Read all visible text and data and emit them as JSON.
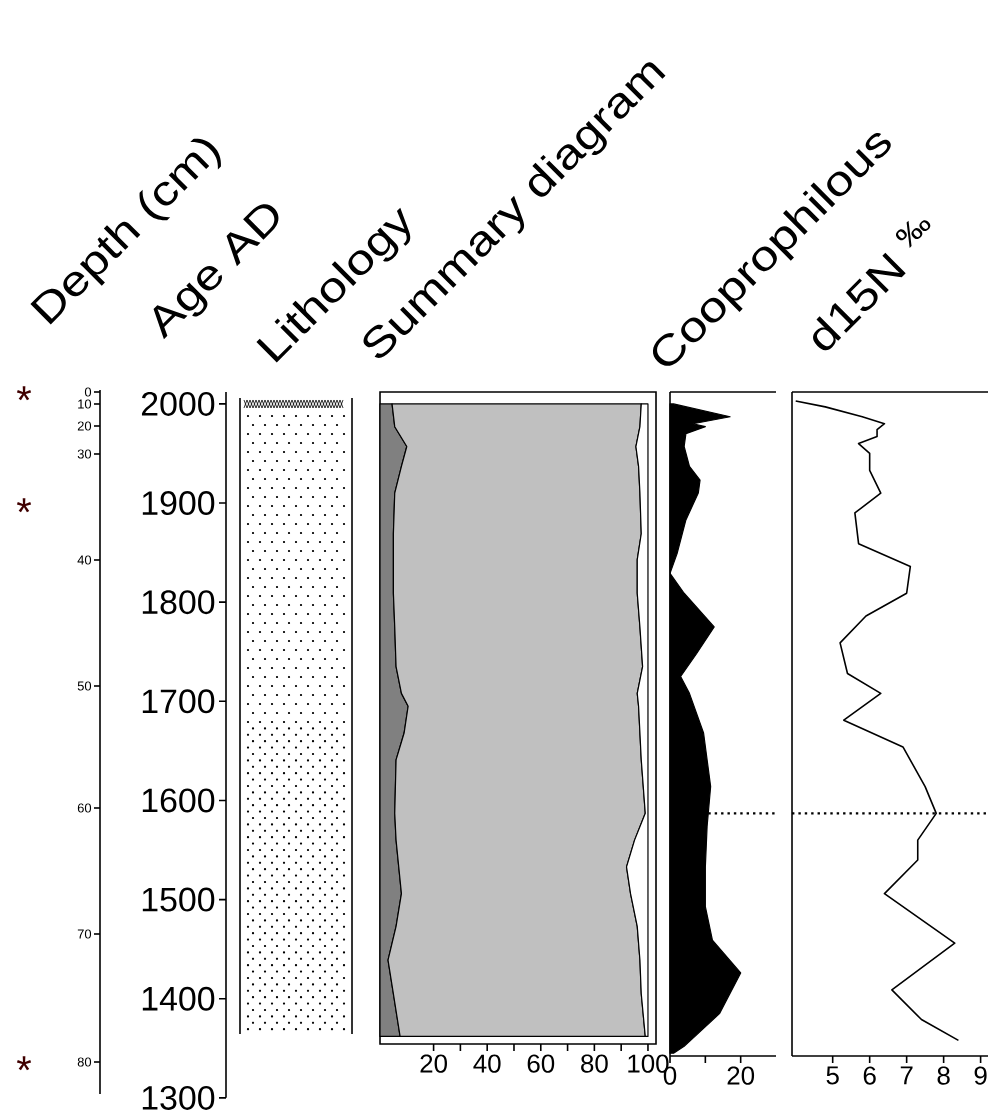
{
  "chart_data": [
    {
      "type": "area",
      "title": "Summary diagram",
      "ylabel": "Age AD",
      "orientation": "horizontal",
      "stacked": true,
      "x": [
        2000,
        1977,
        1957,
        1937,
        1910,
        1869,
        1843,
        1809,
        1775,
        1735,
        1708,
        1695,
        1668,
        1641,
        1587,
        1560,
        1533,
        1506,
        1473,
        1439,
        1405,
        1362
      ],
      "series": [
        {
          "color": "#808080",
          "values": [
            4.5,
            5.5,
            10,
            8,
            5.5,
            5,
            5,
            5,
            5.5,
            6,
            8,
            10.5,
            9,
            6,
            5.5,
            6,
            7,
            8,
            6,
            3,
            5,
            7.5
          ]
        },
        {
          "color": "#c0c0c0",
          "values": [
            93,
            91.5,
            85.5,
            88.5,
            91.5,
            92.5,
            91,
            91,
            91.5,
            92,
            88,
            86,
            88,
            91.5,
            93.5,
            89,
            85,
            85.5,
            90,
            94,
            92.5,
            91.5
          ]
        },
        {
          "color": "#ffffff",
          "values": [
            2.5,
            3,
            4.5,
            3.5,
            3,
            2.5,
            4,
            4,
            3,
            2,
            4,
            3.5,
            3,
            2.5,
            1,
            5,
            8,
            6.5,
            4,
            3,
            2.5,
            1
          ]
        }
      ],
      "xlim": [
        0,
        103
      ],
      "xticks": [
        20,
        40,
        60,
        80,
        100
      ],
      "ylim": [
        1300,
        2012
      ],
      "yticks": [
        2000,
        1900,
        1800,
        1700,
        1600,
        1500,
        1400,
        1300
      ],
      "annotations": [
        "Depth (cm)",
        "Lithology",
        "0",
        "10",
        "20",
        "30",
        "40",
        "50",
        "60",
        "70",
        "80",
        "*",
        "*",
        "*"
      ]
    },
    {
      "type": "area",
      "title": "Cooprophilous",
      "orientation": "horizontal",
      "color": "#000000",
      "x": [
        2000,
        1987,
        1980,
        1977,
        1970,
        1957,
        1937,
        1923,
        1910,
        1883,
        1849,
        1829,
        1809,
        1775,
        1748,
        1725,
        1708,
        1668,
        1614,
        1574,
        1533,
        1493,
        1459,
        1426,
        1385,
        1352,
        1345
      ],
      "values": [
        1,
        17,
        6.5,
        10,
        4.5,
        4,
        5.5,
        8.5,
        8,
        4.5,
        2,
        0,
        4,
        12.5,
        7.5,
        3,
        5.5,
        9.5,
        11.5,
        10.5,
        10,
        10,
        12,
        20,
        14,
        4,
        1
      ],
      "xlim": [
        0,
        30
      ],
      "xticks": [
        0,
        20
      ],
      "ylim": [
        1300,
        2012
      ],
      "tick_labels": "x",
      "ref_lines": [
        {
          "axis": "y",
          "value": 1587,
          "line_style": "dotted"
        }
      ]
    },
    {
      "type": "line",
      "title": "d15N $^{‰}$",
      "orientation": "horizontal",
      "color": "#000000",
      "x": [
        2003,
        1997,
        1987,
        1980,
        1974,
        1967,
        1960,
        1950,
        1933,
        1910,
        1890,
        1859,
        1836,
        1809,
        1786,
        1759,
        1728,
        1708,
        1681,
        1654,
        1614,
        1587,
        1560,
        1540,
        1506,
        1456,
        1409,
        1379,
        1358
      ],
      "values": [
        4.0,
        4.8,
        5.8,
        6.4,
        6.2,
        6.2,
        5.7,
        6.0,
        6.0,
        6.3,
        5.6,
        5.7,
        7.1,
        7.0,
        5.9,
        5.2,
        5.4,
        6.3,
        5.3,
        6.9,
        7.5,
        7.8,
        7.3,
        7.3,
        6.4,
        8.3,
        6.6,
        7.4,
        8.4
      ],
      "xlim": [
        3.9,
        9.2
      ],
      "xticks": [
        5,
        6,
        7,
        8,
        9
      ],
      "ylim": [
        1300,
        2012
      ],
      "tick_labels": "x",
      "ref_lines": [
        {
          "axis": "y",
          "value": 1587,
          "line_style": "dotted"
        }
      ]
    }
  ]
}
